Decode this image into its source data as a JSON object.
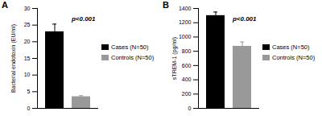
{
  "chart_data": [
    {
      "type": "bar",
      "title": "A",
      "categories": [
        "Cases (N=50)",
        "Controls (N=50)"
      ],
      "values": [
        23,
        3.5
      ],
      "errors": [
        2.3,
        0.3
      ],
      "colors": [
        "#000000",
        "#999999"
      ],
      "y_label": "Bacterial endotoxin (EU/ml)",
      "ylim": [
        0,
        30
      ],
      "yticks": [
        0,
        5,
        10,
        15,
        20,
        25,
        30
      ],
      "annotation": "p<0.001",
      "legend": "right",
      "tick_labels": "y"
    },
    {
      "type": "bar",
      "title": "B",
      "categories": [
        "Cases (N=50)",
        "Controls (N=50)"
      ],
      "values": [
        1300,
        870
      ],
      "errors": [
        50,
        60
      ],
      "colors": [
        "#000000",
        "#999999"
      ],
      "y_label": "sTREM-1 (pg/ml)",
      "ylim": [
        0,
        1400
      ],
      "yticks": [
        0,
        200,
        400,
        600,
        800,
        1000,
        1200,
        1400
      ],
      "annotation": "p<0.001",
      "legend": "right",
      "tick_labels": "y"
    }
  ]
}
